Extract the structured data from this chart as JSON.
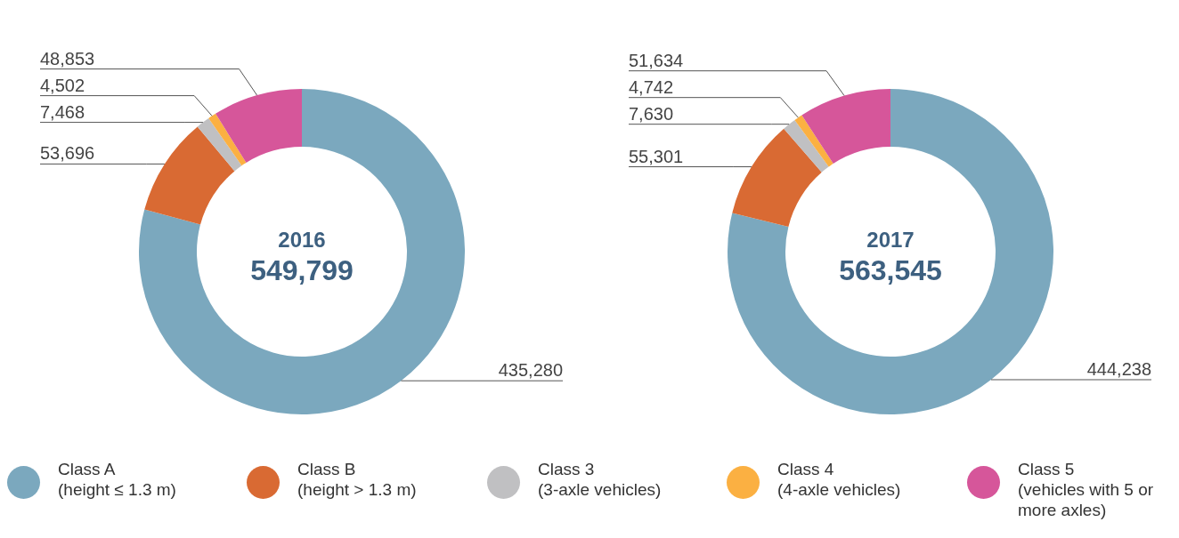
{
  "chart_data": [
    {
      "type": "donut",
      "title": "2016",
      "subtitle": "549,799",
      "categories": [
        "Class A\n(height ≤ 1.3 m)",
        "Class B\n(height > 1.3 m)",
        "Class 3\n(3-axle vehicles)",
        "Class 4\n(4-axle vehicles)",
        "Class 5\n(vehicles with 5 or\nmore axles)"
      ],
      "values": [
        435280,
        53696,
        7468,
        4502,
        48853
      ],
      "value_labels": [
        "435,280",
        "53,696",
        "7,468",
        "4,502",
        "48,853"
      ],
      "colors": [
        "#7ba8be",
        "#d96a33",
        "#c0c0c2",
        "#fbb042",
        "#d6569a"
      ],
      "legend": "bottom"
    },
    {
      "type": "donut",
      "title": "2017",
      "subtitle": "563,545",
      "categories": [
        null,
        null,
        null,
        null,
        null
      ],
      "values": [
        444238,
        55301,
        7630,
        4742,
        51634
      ],
      "value_labels": [
        "444,238",
        "55,301",
        "7,630",
        "4,742",
        "51,634"
      ],
      "colors": [
        "#7ba8be",
        "#d96a33",
        "#c0c0c2",
        "#fbb042",
        "#d6569a"
      ]
    }
  ]
}
